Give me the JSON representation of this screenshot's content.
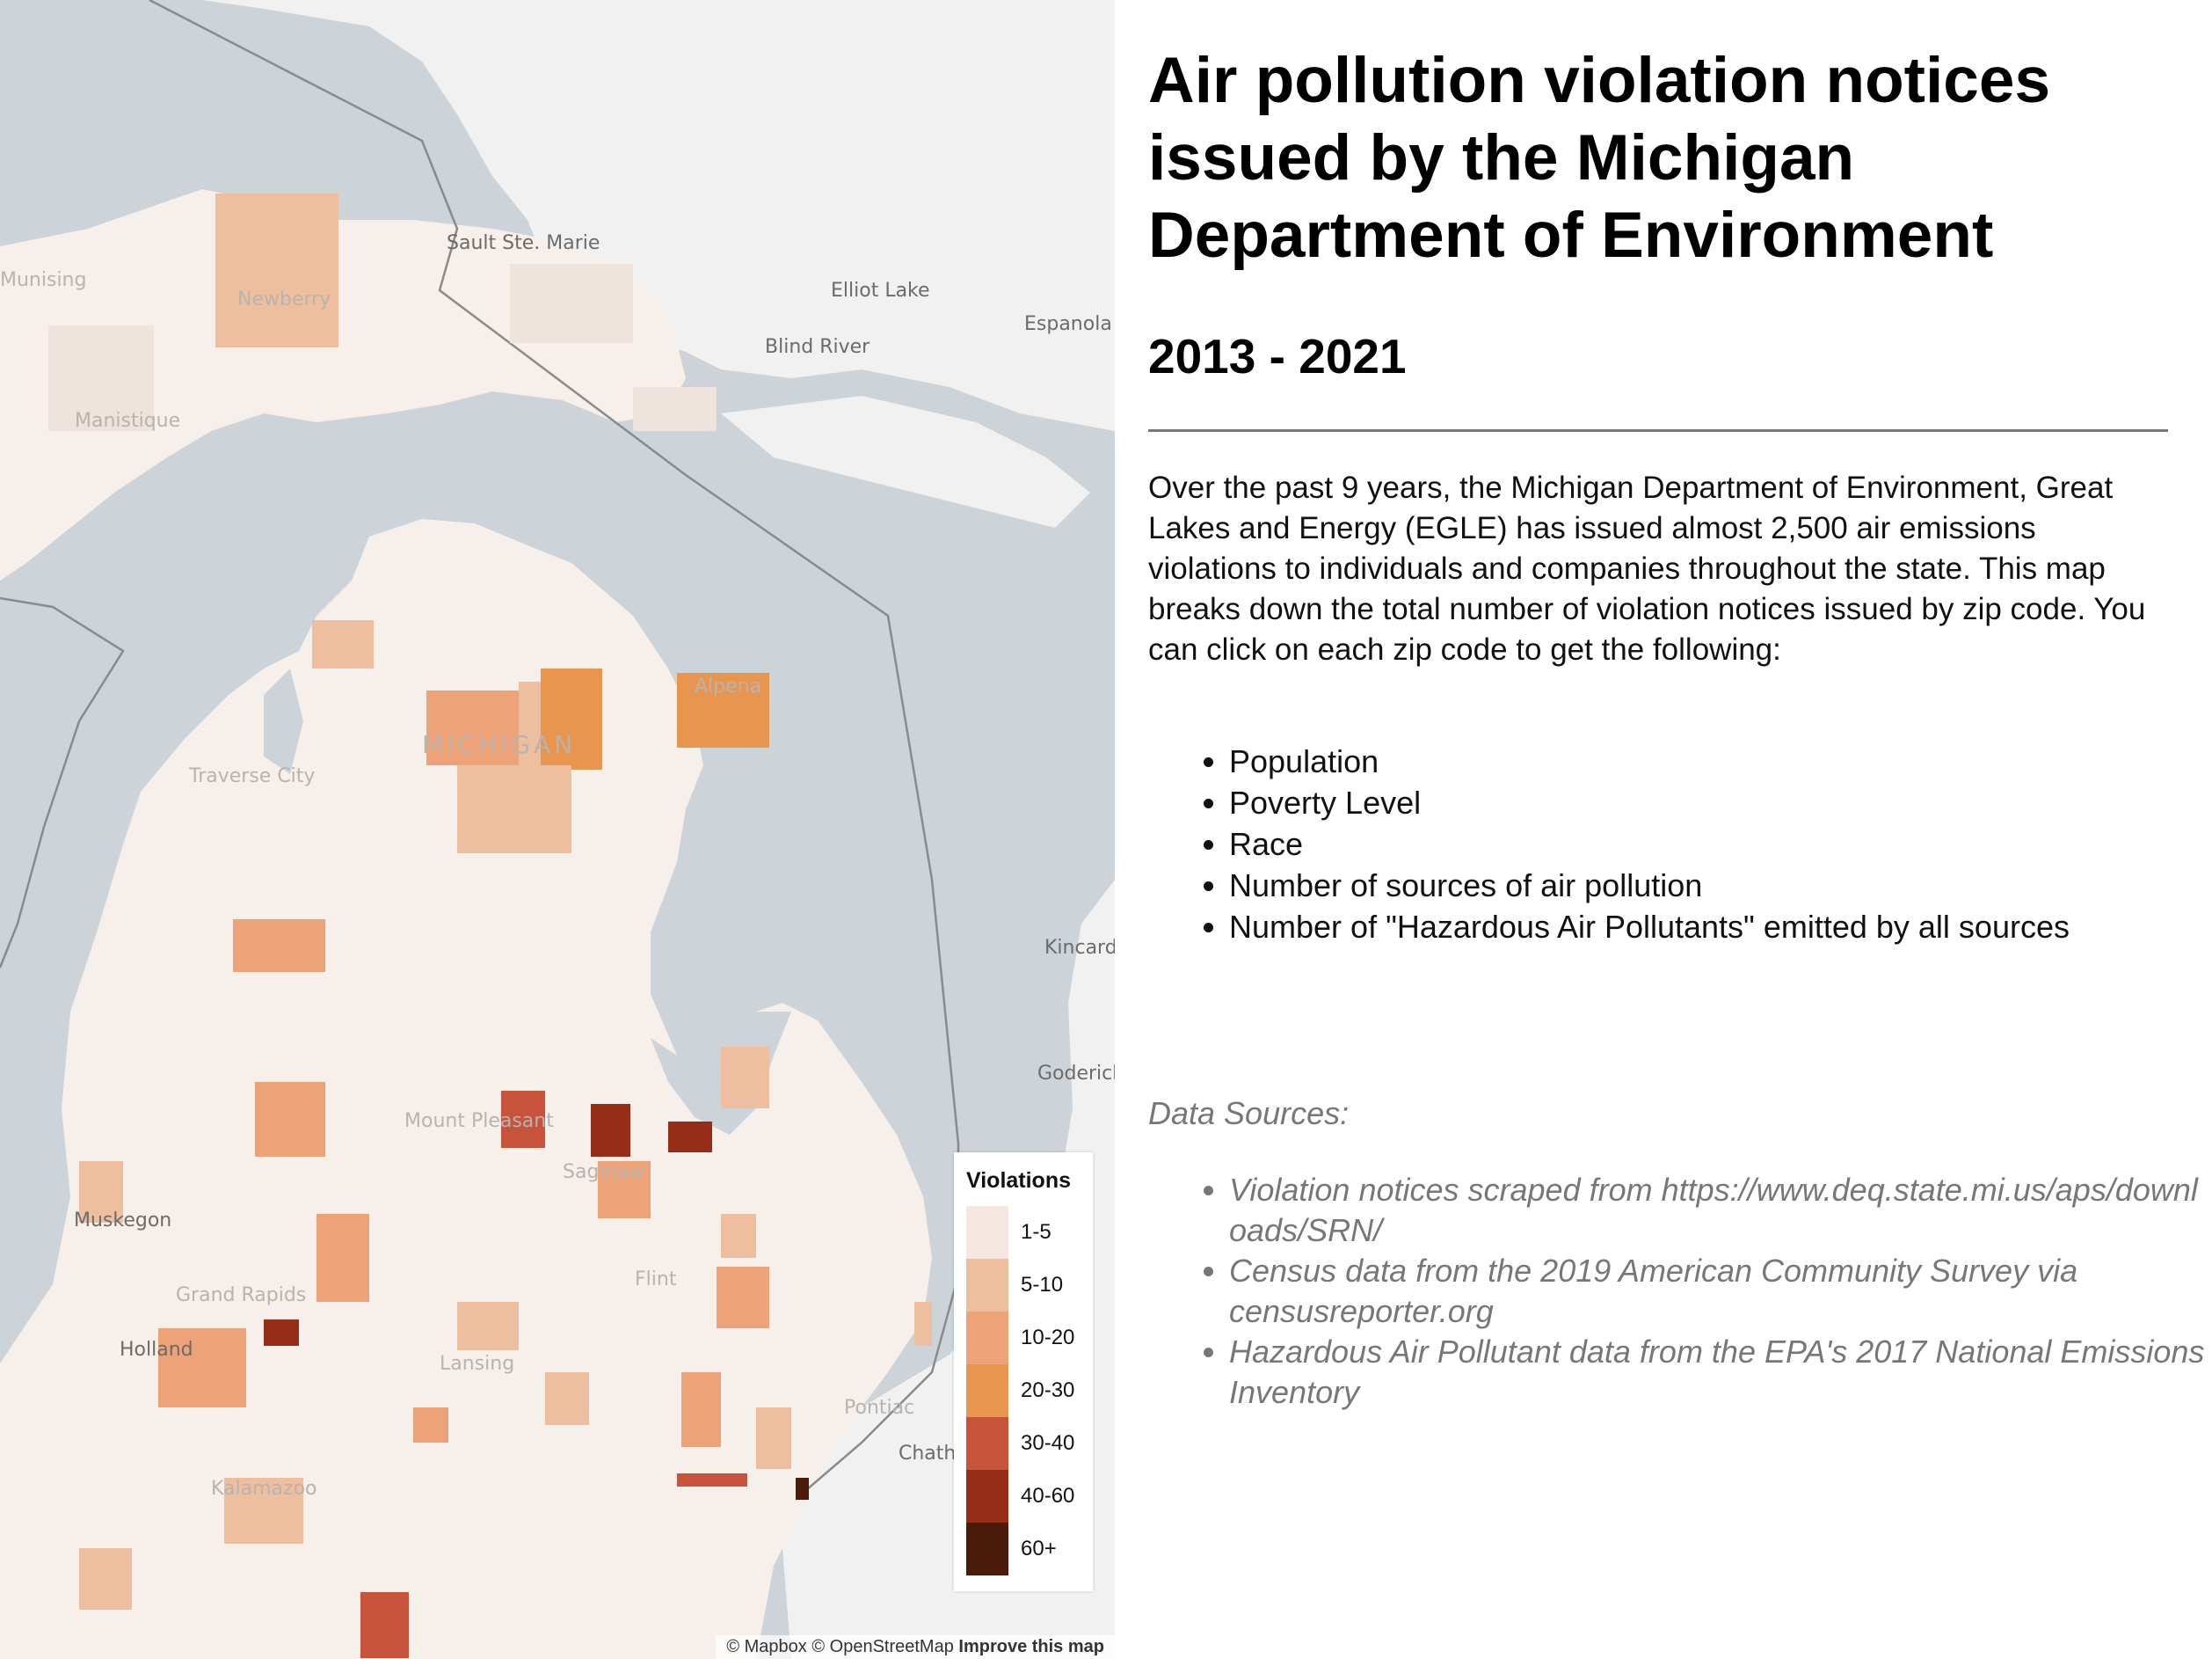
{
  "map": {
    "place_labels": [
      {
        "name": "Sault Ste. Marie"
      },
      {
        "name": "Elliot Lake"
      },
      {
        "name": "Blind River"
      },
      {
        "name": "Espanola"
      },
      {
        "name": "Kincard"
      },
      {
        "name": "Goderich"
      },
      {
        "name": "Munising"
      },
      {
        "name": "Newberry"
      },
      {
        "name": "Manistique"
      },
      {
        "name": "MICHIGAN"
      },
      {
        "name": "Alpena"
      },
      {
        "name": "Traverse City"
      },
      {
        "name": "Muskegon"
      },
      {
        "name": "Grand Rapids"
      },
      {
        "name": "Holland"
      },
      {
        "name": "Lansing"
      },
      {
        "name": "Flint"
      },
      {
        "name": "Saginaw"
      },
      {
        "name": "Mount Pleasant"
      },
      {
        "name": "Chatham"
      },
      {
        "name": "Pontiac"
      },
      {
        "name": "Kalamazoo"
      }
    ],
    "attribution": {
      "mapbox": "© Mapbox",
      "osm": "© OpenStreetMap",
      "improve": "Improve this map"
    }
  },
  "legend": {
    "title": "Violations",
    "items": [
      {
        "label": "1-5",
        "color": "#f4e6e0"
      },
      {
        "label": "5-10",
        "color": "#eebf9e"
      },
      {
        "label": "10-20",
        "color": "#eda277"
      },
      {
        "label": "20-30",
        "color": "#e89550"
      },
      {
        "label": "30-40",
        "color": "#c8533b"
      },
      {
        "label": "40-60",
        "color": "#962d16"
      },
      {
        "label": "60+",
        "color": "#4a1a0a"
      }
    ]
  },
  "panel": {
    "title": "Air pollution violation notices issued by the Michigan Department of Environment",
    "subtitle": "2013 - 2021",
    "intro": "Over the past 9 years, the Michigan Department of Environment, Great Lakes and Energy (EGLE) has issued almost 2,500 air emissions violations to individuals and companies throughout the state. This map breaks down the total number of violation notices issued by zip code. You can click on each zip code to get the following:",
    "fields": [
      "Population",
      "Poverty Level",
      "Race",
      "Number of sources of air pollution",
      "Number of \"Hazardous Air Pollutants\" emitted by all sources"
    ],
    "sources_title": "Data Sources:",
    "sources": [
      "Violation notices scraped from https://www.deq.state.mi.us/aps/downloads/SRN/",
      "Census data from the 2019 American Community Survey via censusreporter.org",
      "Hazardous Air Pollutant data from the EPA's 2017 National Emissions Inventory"
    ]
  }
}
